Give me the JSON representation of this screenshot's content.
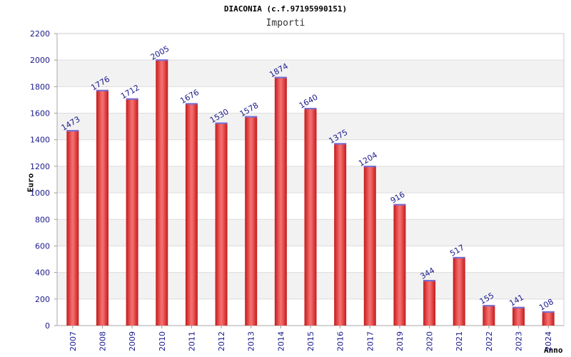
{
  "chart_data": {
    "type": "bar",
    "title": "DIACONIA (c.f.97195990151)",
    "subtitle": "Importi",
    "xlabel": "Anno",
    "ylabel": "Euro",
    "categories": [
      "2007",
      "2008",
      "2009",
      "2010",
      "2011",
      "2012",
      "2013",
      "2014",
      "2015",
      "2016",
      "2017",
      "2019",
      "2020",
      "2021",
      "2022",
      "2023",
      "2024"
    ],
    "values": [
      1473,
      1776,
      1712,
      2005,
      1676,
      1530,
      1578,
      1874,
      1640,
      1375,
      1204,
      916,
      344,
      517,
      155,
      141,
      108
    ],
    "ylim": [
      0,
      2200
    ],
    "yticks": [
      0,
      200,
      400,
      600,
      800,
      1000,
      1200,
      1400,
      1600,
      1800,
      2000,
      2200
    ],
    "grid": true,
    "colors": {
      "bar_center": "#f26a6a",
      "bar_edge": "#c41a1a",
      "bar_top": "#7070d8",
      "band": "#f2f2f2",
      "gridline": "#dddddd",
      "label": "#1a1a8c"
    }
  }
}
